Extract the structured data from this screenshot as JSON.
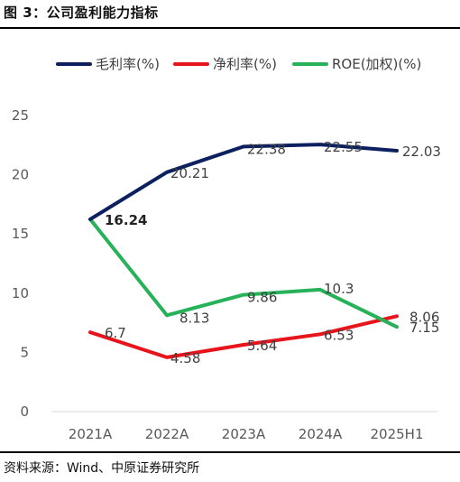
{
  "figure": {
    "title": "图 3：公司盈利能力指标",
    "source": "资料来源：Wind、中原证券研究所"
  },
  "chart_data": {
    "type": "line",
    "categories": [
      "2021A",
      "2022A",
      "2023A",
      "2024A",
      "2025H1"
    ],
    "ylim": [
      0,
      25
    ],
    "yticks": [
      0,
      5,
      10,
      15,
      20,
      25
    ],
    "grid": false,
    "legend_position": "top",
    "series": [
      {
        "name": "毛利率(%)",
        "color": "#0c2060",
        "values": [
          16.24,
          20.21,
          22.38,
          22.55,
          22.03
        ],
        "labels": [
          "16.24",
          "20.21",
          "22.38",
          "22.55",
          "22.03"
        ]
      },
      {
        "name": "净利率(%)",
        "color": "#e8141c",
        "values": [
          6.7,
          4.58,
          5.64,
          6.53,
          8.06
        ],
        "labels": [
          "6.7",
          "4.58",
          "5.64",
          "6.53",
          "8.06"
        ]
      },
      {
        "name": "ROE(加权)(%)",
        "color": "#27b25a",
        "values": [
          16.24,
          8.13,
          9.86,
          10.3,
          7.15
        ],
        "labels": [
          "",
          "8.13",
          "9.86",
          "10.3",
          "7.15"
        ]
      }
    ]
  }
}
